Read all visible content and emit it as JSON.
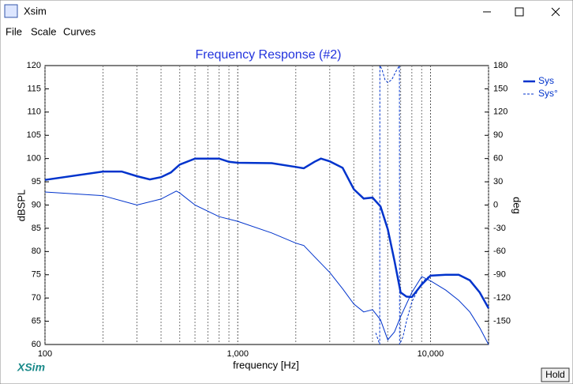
{
  "window": {
    "title": "Xsim",
    "menu": [
      "File",
      "Scale",
      "Curves"
    ],
    "logo": "XSim",
    "hold_button": "Hold"
  },
  "chart_data": {
    "type": "line",
    "title": "Frequency Response (#2)",
    "x_label": "frequency [Hz]",
    "y_label": "dBSPL",
    "y2_label": "deg",
    "log_x": true,
    "xlim": [
      100,
      20000
    ],
    "xticks": [
      100,
      {
        "value": 1000,
        "label": "1,000"
      },
      {
        "value": 10000,
        "label": "10,000"
      }
    ],
    "x_minor_ticks": [
      200,
      300,
      400,
      500,
      600,
      700,
      800,
      900,
      2000,
      3000,
      4000,
      5000,
      6000,
      7000,
      8000,
      9000,
      20000
    ],
    "ylim": [
      60,
      120
    ],
    "yticks": [
      60,
      65,
      70,
      75,
      80,
      85,
      90,
      95,
      100,
      105,
      110,
      115,
      120
    ],
    "y2lim": [
      -180,
      180
    ],
    "y2ticks": [
      -150,
      -120,
      -90,
      -60,
      -30,
      0,
      30,
      60,
      90,
      120,
      150,
      180
    ],
    "legend": "right",
    "series": [
      {
        "name": "Sys",
        "color": "#0033cc",
        "style": "thick",
        "x": [
          100,
          200,
          250,
          300,
          350,
          400,
          450,
          500,
          600,
          800,
          900,
          1000,
          1500,
          2000,
          2200,
          2500,
          2700,
          3000,
          3500,
          4000,
          4500,
          5000,
          5500,
          6000,
          6500,
          7000,
          7500,
          8000,
          9000,
          10000,
          12000,
          14000,
          16000,
          18000,
          20000
        ],
        "values": [
          95.4,
          97.2,
          97.2,
          96.2,
          95.5,
          96,
          97,
          98.7,
          100,
          100,
          99.3,
          99.1,
          99,
          98.2,
          97.9,
          99.3,
          100,
          99.4,
          98,
          93.4,
          91.4,
          91.6,
          89.7,
          84.8,
          78,
          71.2,
          70.3,
          70.2,
          72.9,
          74.8,
          75,
          75,
          73.8,
          71.2,
          67.8
        ]
      },
      {
        "name": "Sys°",
        "color": "#0033cc",
        "style": "dashed",
        "axis": "y2",
        "x": [
          5200,
          5450,
          5460,
          5600,
          5800,
          6000,
          6300,
          6600,
          6900,
          6910,
          7200,
          7500,
          8000,
          9000,
          10000
        ],
        "values": [
          -165,
          -180,
          180,
          175,
          162,
          158,
          162,
          172,
          180,
          -180,
          -170,
          -150,
          -125,
          -100,
          -90
        ]
      },
      {
        "color": "#0033cc",
        "style": "thin",
        "x": [
          100,
          200,
          300,
          400,
          480,
          500,
          600,
          800,
          1000,
          1500,
          2000,
          2200,
          2500,
          3000,
          3500,
          4000,
          4500,
          5000,
          5500,
          6000,
          6500,
          7000,
          8000,
          9000,
          10000,
          12000,
          14000,
          16000,
          18000,
          20000
        ],
        "values": [
          92.8,
          92,
          90,
          91.3,
          93,
          92.6,
          90,
          87.5,
          86.5,
          84,
          81.8,
          81.3,
          78.9,
          75.5,
          72,
          68.7,
          67,
          67.5,
          65.3,
          61,
          62.7,
          66,
          71.2,
          74.6,
          73.7,
          71.7,
          69.5,
          67,
          63.6,
          60
        ]
      }
    ]
  }
}
